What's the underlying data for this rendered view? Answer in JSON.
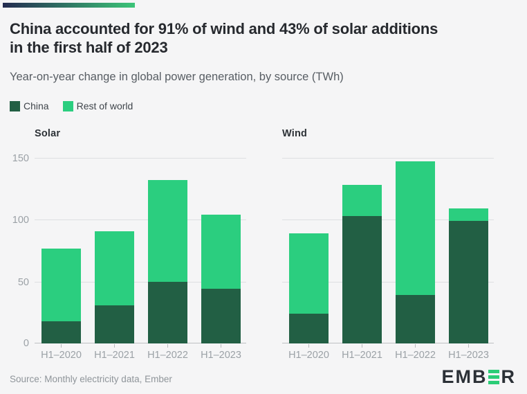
{
  "header": {
    "title_line1": "China accounted for 91% of wind and 43% of solar additions",
    "title_line2": "in the first half of 2023",
    "subtitle": "Year-on-year change in global power generation, by source (TWh)"
  },
  "legend": [
    {
      "label": "China",
      "color": "#225f44"
    },
    {
      "label": "Rest of world",
      "color": "#2bce7f"
    }
  ],
  "chart_data": {
    "type": "bar",
    "stacked": true,
    "categories": [
      "H1–2020",
      "H1–2021",
      "H1–2022",
      "H1–2023"
    ],
    "ylim": [
      0,
      150
    ],
    "yticks": [
      0,
      50,
      100,
      150
    ],
    "grid": true,
    "legend_position": "top-left",
    "unit": "TWh",
    "charts": [
      {
        "title": "Solar",
        "series": [
          {
            "name": "China",
            "values": [
              18,
              31,
              50,
              44
            ]
          },
          {
            "name": "Rest of world",
            "values": [
              59,
              60,
              82,
              60
            ]
          }
        ]
      },
      {
        "title": "Wind",
        "series": [
          {
            "name": "China",
            "values": [
              24,
              103,
              39,
              99
            ]
          },
          {
            "name": "Rest of world",
            "values": [
              65,
              25,
              108,
              10
            ]
          }
        ]
      }
    ]
  },
  "footer": {
    "source": "Source: Monthly electricity data, Ember"
  },
  "logo": {
    "part1": "EMB",
    "part2": "R",
    "color": "#2b3036",
    "accent": "#2bcd77"
  },
  "accent_bar": {
    "from": "#242b50",
    "to": "#3cc478"
  }
}
